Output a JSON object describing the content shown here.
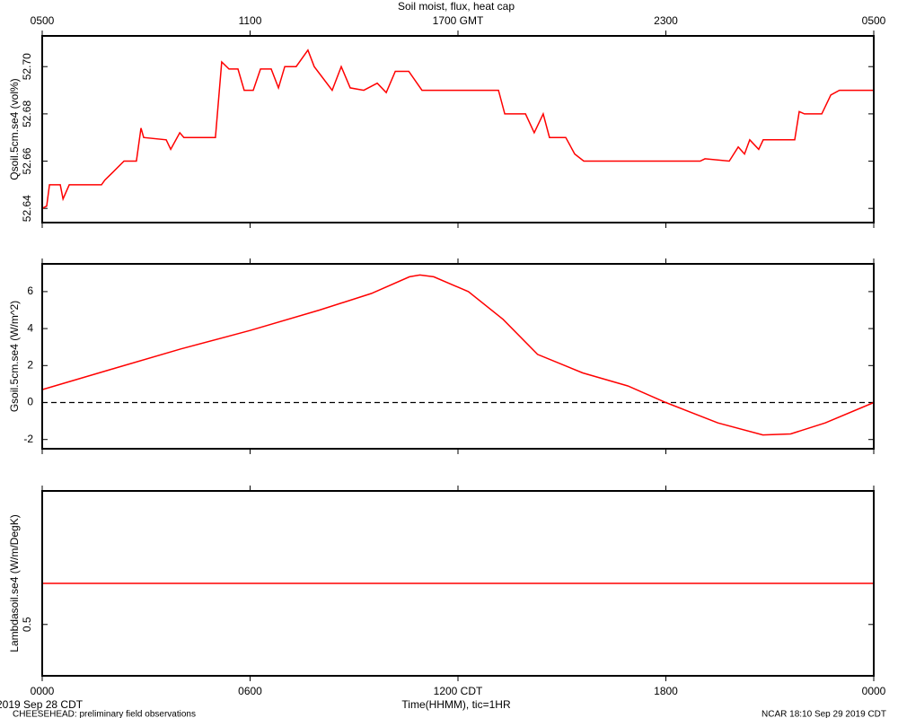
{
  "chart_data": [
    {
      "type": "line",
      "title": "Soil moist, flux, heat cap",
      "ylabel": "Qsoil.5cm.se4 (vol%)",
      "x": [
        0,
        0.13,
        0.21,
        0.52,
        0.6,
        0.78,
        1.71,
        1.81,
        2.02,
        2.36,
        2.72,
        2.85,
        2.93,
        3.58,
        3.71,
        3.97,
        4.09,
        5.0,
        5.18,
        5.39,
        5.65,
        5.83,
        6.09,
        6.3,
        6.61,
        6.82,
        7.0,
        7.33,
        7.67,
        7.85,
        8.37,
        8.63,
        8.89,
        9.28,
        9.67,
        9.93,
        10.19,
        10.58,
        10.96,
        11.35,
        12.13,
        13.17,
        13.35,
        13.95,
        14.2,
        14.46,
        14.64,
        15.11,
        15.37,
        15.63,
        16.92,
        18.99,
        19.13,
        19.83,
        20.09,
        20.27,
        20.42,
        20.68,
        20.81,
        21.72,
        21.85,
        22.0,
        22.5,
        22.76,
        23.01,
        24
      ],
      "values": [
        52.64,
        52.641,
        52.65,
        52.65,
        52.644,
        52.65,
        52.65,
        52.652,
        52.655,
        52.66,
        52.66,
        52.674,
        52.67,
        52.669,
        52.665,
        52.672,
        52.67,
        52.67,
        52.702,
        52.699,
        52.699,
        52.69,
        52.69,
        52.699,
        52.699,
        52.691,
        52.7,
        52.7,
        52.707,
        52.7,
        52.69,
        52.7,
        52.691,
        52.69,
        52.693,
        52.689,
        52.698,
        52.698,
        52.69,
        52.69,
        52.69,
        52.69,
        52.68,
        52.68,
        52.672,
        52.68,
        52.67,
        52.67,
        52.663,
        52.66,
        52.66,
        52.66,
        52.661,
        52.66,
        52.666,
        52.663,
        52.669,
        52.665,
        52.669,
        52.669,
        52.681,
        52.68,
        52.68,
        52.688,
        52.69,
        52.69
      ],
      "color": "#ff0000",
      "xlim": [
        0,
        24
      ],
      "ylim": [
        52.634,
        52.713
      ],
      "yticks": [
        52.64,
        52.66,
        52.68,
        {
          "value": 52.7,
          "label": "52.70"
        }
      ],
      "x2ticks": [
        {
          "value": 0,
          "label": "0500"
        },
        {
          "value": 6,
          "label": "1100"
        },
        {
          "value": 12,
          "label": "1700 GMT"
        },
        {
          "value": 18,
          "label": "2300"
        },
        {
          "value": 24,
          "label": "0500"
        }
      ]
    },
    {
      "type": "line",
      "ylabel": "Gsoil.5cm.se4 (W/m^2)",
      "x": [
        0,
        2,
        4,
        6,
        8,
        9.5,
        10.6,
        10.9,
        11.3,
        12.3,
        13.3,
        14.3,
        15.6,
        16.9,
        18,
        19.5,
        20.8,
        21.6,
        22.6,
        24
      ],
      "values": [
        0.7,
        1.8,
        2.9,
        3.9,
        5.0,
        5.9,
        6.8,
        6.9,
        6.8,
        6.0,
        4.5,
        2.6,
        1.6,
        0.9,
        0,
        -1.1,
        -1.75,
        -1.7,
        -1.1,
        0
      ],
      "color": "#ff0000",
      "xlim": [
        0,
        24
      ],
      "ylim": [
        -2.5,
        7.5
      ],
      "yticks": [
        -2,
        0,
        2,
        4,
        6
      ],
      "hline": 0
    },
    {
      "type": "line",
      "ylabel": "Lambdasoil.se4 (W/m/DegK)",
      "xlabel": "Time(HHMM), tic=1HR",
      "x": [
        0,
        24
      ],
      "values": [
        0.54,
        0.54
      ],
      "color": "#ff0000",
      "xlim": [
        0,
        24
      ],
      "ylim": [
        0.45,
        0.63
      ],
      "yticks": [
        0.5
      ],
      "xticks": [
        {
          "value": 0,
          "label": "0000"
        },
        {
          "value": 6,
          "label": "0600"
        },
        {
          "value": 12,
          "label": "1200 CDT"
        },
        {
          "value": 18,
          "label": "1800"
        },
        {
          "value": 24,
          "label": "0000"
        }
      ]
    }
  ],
  "date_label": "2019 Sep 28 CDT",
  "footer_left": "CHEESEHEAD: preliminary field observations",
  "footer_right": "NCAR 18:10 Sep 29 2019 CDT"
}
